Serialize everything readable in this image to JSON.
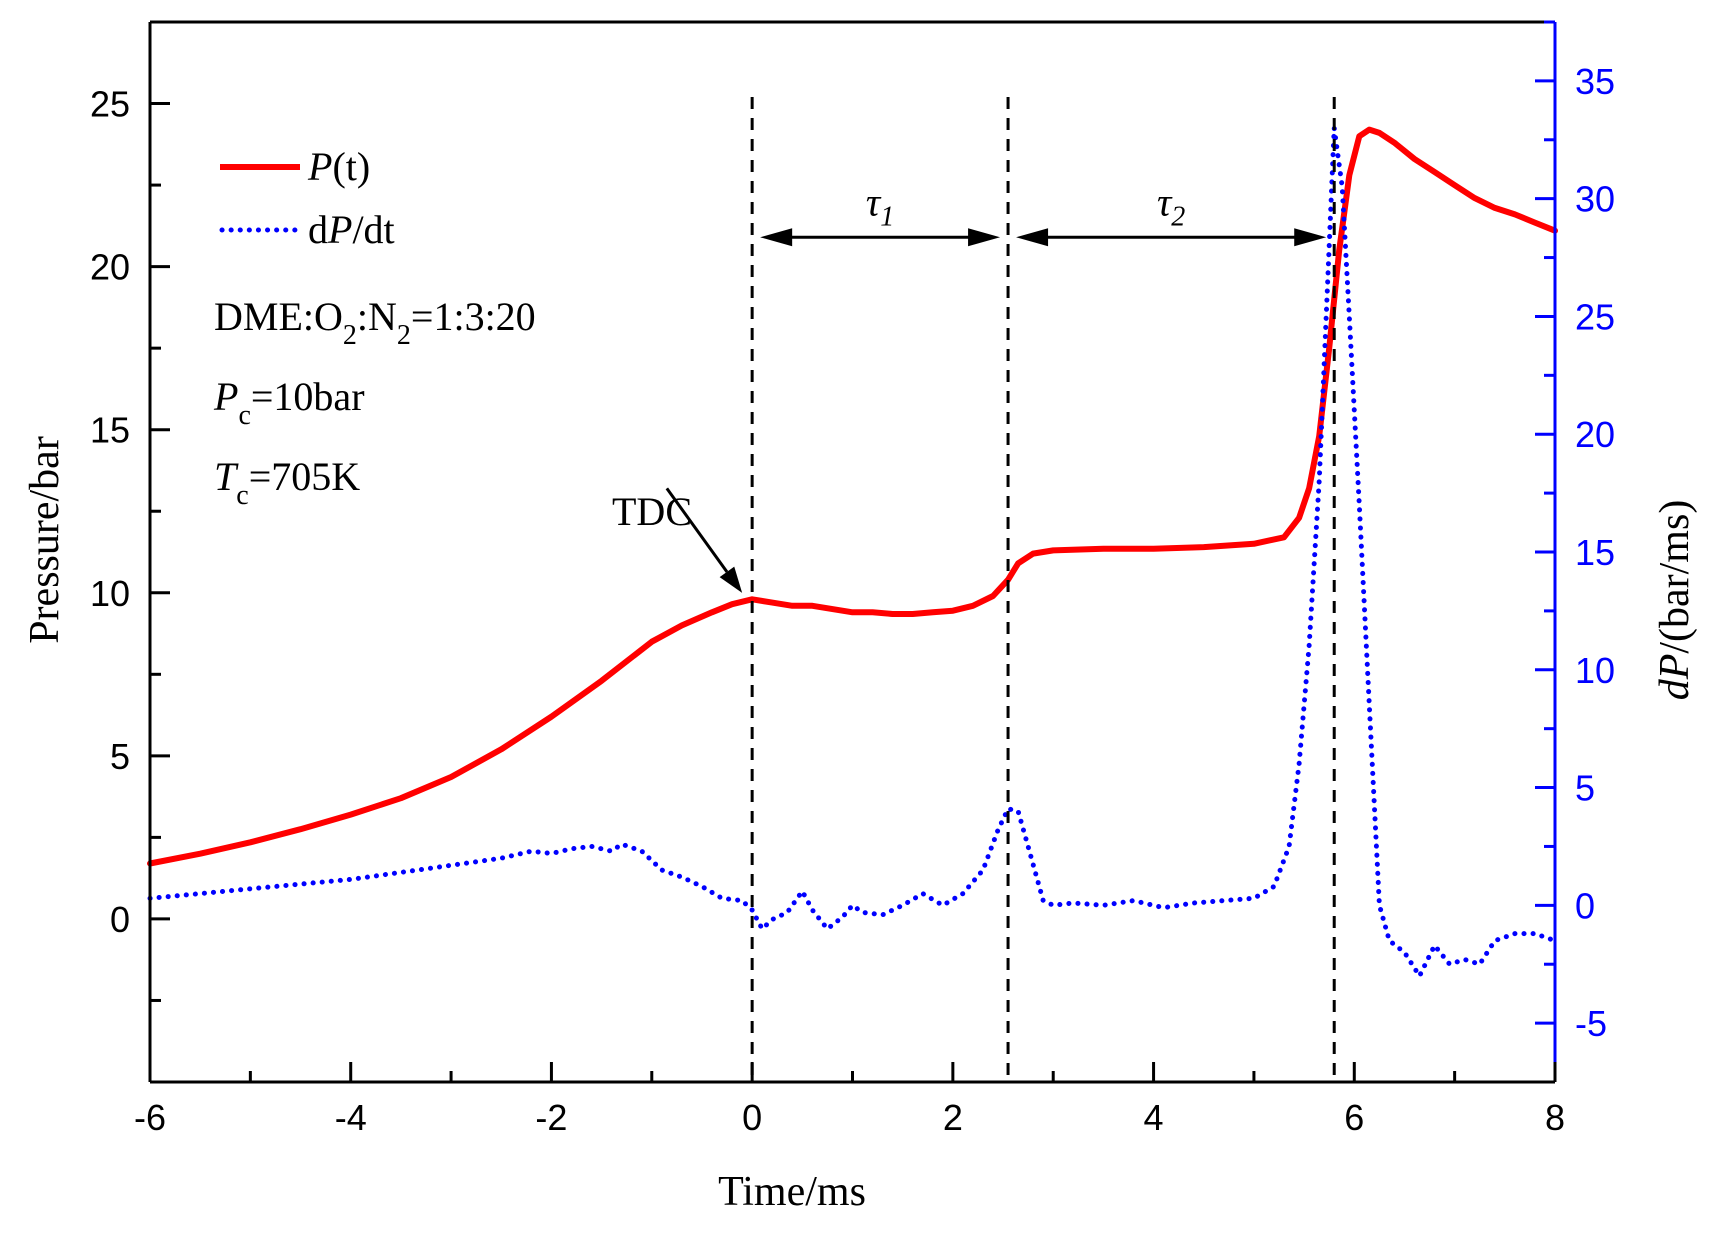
{
  "chart_data": {
    "type": "line",
    "xlabel": "Time/ms",
    "ylabel_left": "Pressure/bar",
    "ylabel_right": {
      "italic": "dP",
      "rest": "/(bar/ms)"
    },
    "xlim": [
      -6,
      8
    ],
    "ylim_left": [
      -5,
      27.5
    ],
    "ylim_right": [
      -7.5,
      37.5
    ],
    "x_ticks": [
      -6,
      -4,
      -2,
      0,
      2,
      4,
      6,
      8
    ],
    "x_tick_labels": [
      "-6",
      "-4",
      "-2",
      "0",
      "2",
      "4",
      "6",
      "8"
    ],
    "y_left_ticks": [
      0,
      5,
      10,
      15,
      20,
      25
    ],
    "y_left_tick_labels": [
      "0",
      "5",
      "10",
      "15",
      "20",
      "25"
    ],
    "y_right_ticks": [
      -5,
      0,
      5,
      10,
      15,
      20,
      25,
      30,
      35
    ],
    "y_right_tick_labels": [
      "-5",
      "0",
      "5",
      "10",
      "15",
      "20",
      "25",
      "30",
      "35"
    ],
    "legend_position": "top-left",
    "series": [
      {
        "name": {
          "italic": "P",
          "rest": "(t)"
        },
        "axis": "left",
        "style": "solid",
        "color": "#ff0000",
        "x": [
          -6,
          -5.5,
          -5,
          -4.5,
          -4,
          -3.5,
          -3,
          -2.5,
          -2,
          -1.5,
          -1,
          -0.7,
          -0.4,
          -0.2,
          0,
          0.2,
          0.4,
          0.6,
          0.8,
          1.0,
          1.2,
          1.4,
          1.6,
          1.8,
          2.0,
          2.2,
          2.4,
          2.55,
          2.65,
          2.8,
          3.0,
          3.5,
          4.0,
          4.5,
          5.0,
          5.3,
          5.45,
          5.55,
          5.65,
          5.75,
          5.85,
          5.95,
          6.05,
          6.15,
          6.25,
          6.4,
          6.6,
          6.8,
          7.0,
          7.2,
          7.4,
          7.6,
          7.8,
          8.0
        ],
        "y": [
          1.7,
          2.0,
          2.35,
          2.75,
          3.2,
          3.7,
          4.35,
          5.2,
          6.2,
          7.3,
          8.5,
          9.0,
          9.4,
          9.65,
          9.8,
          9.7,
          9.6,
          9.6,
          9.5,
          9.4,
          9.4,
          9.35,
          9.35,
          9.4,
          9.45,
          9.6,
          9.9,
          10.4,
          10.9,
          11.2,
          11.3,
          11.35,
          11.35,
          11.4,
          11.5,
          11.7,
          12.3,
          13.2,
          14.8,
          17.5,
          20.5,
          22.8,
          24.0,
          24.2,
          24.1,
          23.8,
          23.3,
          22.9,
          22.5,
          22.1,
          21.8,
          21.6,
          21.35,
          21.1
        ]
      },
      {
        "name": {
          "prefix": "d",
          "italic": "P",
          "rest": "/dt"
        },
        "axis": "right",
        "style": "dotted",
        "color": "#0000ff",
        "x": [
          -6,
          -5.5,
          -5,
          -4.5,
          -4,
          -3.5,
          -3,
          -2.5,
          -2.2,
          -2,
          -1.8,
          -1.6,
          -1.4,
          -1.3,
          -1.1,
          -0.9,
          -0.7,
          -0.5,
          -0.3,
          -0.1,
          0,
          0.1,
          0.2,
          0.35,
          0.5,
          0.6,
          0.75,
          0.9,
          1.0,
          1.1,
          1.3,
          1.5,
          1.7,
          1.9,
          2.1,
          2.3,
          2.45,
          2.55,
          2.65,
          2.75,
          2.9,
          3.0,
          3.2,
          3.5,
          3.8,
          4.1,
          4.4,
          4.7,
          5.0,
          5.2,
          5.35,
          5.45,
          5.55,
          5.65,
          5.72,
          5.8,
          5.88,
          5.95,
          6.05,
          6.15,
          6.25,
          6.35,
          6.5,
          6.65,
          6.8,
          6.95,
          7.1,
          7.25,
          7.4,
          7.6,
          7.8,
          8.0
        ],
        "y": [
          0.3,
          0.5,
          0.7,
          0.9,
          1.1,
          1.4,
          1.7,
          2.0,
          2.3,
          2.2,
          2.4,
          2.5,
          2.3,
          2.6,
          2.3,
          1.5,
          1.2,
          0.8,
          0.3,
          0.2,
          -0.2,
          -1.0,
          -0.6,
          -0.3,
          0.6,
          -0.2,
          -1.0,
          -0.5,
          0.0,
          -0.3,
          -0.4,
          0.0,
          0.5,
          0.0,
          0.5,
          1.5,
          3.2,
          4.1,
          4.0,
          2.5,
          0.2,
          0.0,
          0.1,
          0.0,
          0.2,
          -0.1,
          0.1,
          0.2,
          0.3,
          0.8,
          2.5,
          6.0,
          11.0,
          18.0,
          25.0,
          33.0,
          30.5,
          25.0,
          17.0,
          8.5,
          0.0,
          -1.5,
          -2.0,
          -3.0,
          -1.7,
          -2.5,
          -2.3,
          -2.5,
          -1.5,
          -1.2,
          -1.2,
          -1.5
        ]
      }
    ],
    "annotations": {
      "tdc_label": "TDC",
      "tdc_point": {
        "x": 0.0,
        "y": 9.75
      },
      "tdc_arrow_origin": {
        "x": -0.85,
        "y": 13.2
      },
      "event_lines_x": [
        0.0,
        2.55,
        5.8
      ],
      "interval_arrow_y": 20.9,
      "tau1": {
        "main": "τ",
        "sub": "1",
        "from": 0.0,
        "to": 2.55
      },
      "tau2": {
        "main": "τ",
        "sub": "2",
        "from": 2.55,
        "to": 5.8
      },
      "mixture": [
        "DME:O",
        "2",
        ":N",
        "2",
        "=1:3:20"
      ],
      "pressure_condition": {
        "symbol": "P",
        "sub": "c",
        "value": "=10bar"
      },
      "temperature_condition": {
        "symbol": "T",
        "sub": "c",
        "value": "=705K"
      }
    },
    "colors": {
      "pressure": "#ff0000",
      "dpdt": "#0000ff",
      "axes": "#000000",
      "right_axis": "#0000ff"
    }
  }
}
